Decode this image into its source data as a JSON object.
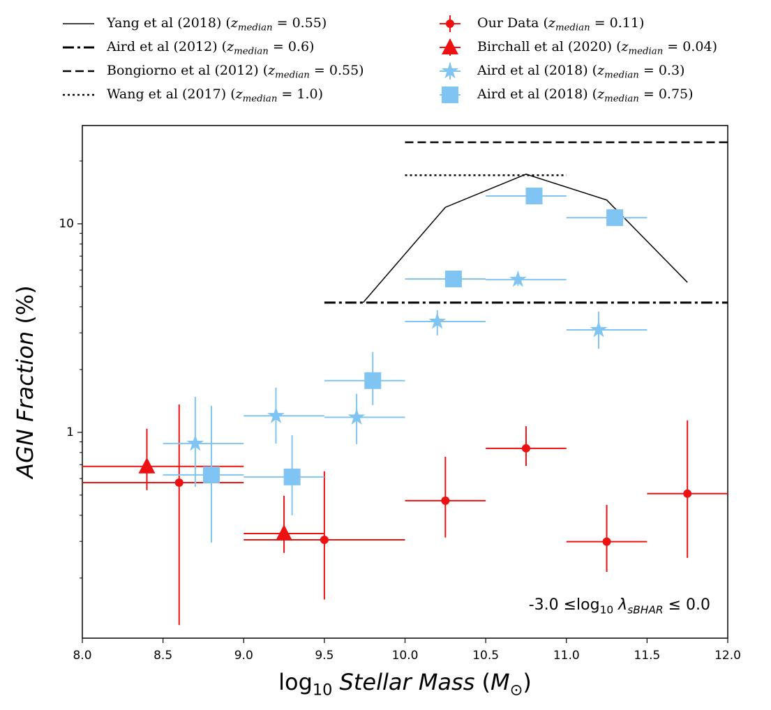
{
  "chart_data": {
    "type": "errorbar",
    "xlabel": "log_{10} *Stellar Mass* (*M*_{⊙})",
    "ylabel": "*AGN Fraction* (%)",
    "annotation": "-3.0 ≤log_{10} *λ*_{*sBHAR*} ≤ 0.0",
    "xlim": [
      8.0,
      12.0
    ],
    "xticks": [
      {
        "value": 8.0,
        "label": "8.0"
      },
      {
        "value": 8.5,
        "label": "8.5"
      },
      {
        "value": 9.0,
        "label": "9.0"
      },
      {
        "value": 9.5,
        "label": "9.5"
      },
      {
        "value": 10.0,
        "label": "10.0"
      },
      {
        "value": 10.5,
        "label": "10.5"
      },
      {
        "value": 11.0,
        "label": "11.0"
      },
      {
        "value": 11.5,
        "label": "11.5"
      },
      {
        "value": 12.0,
        "label": "12.0"
      }
    ],
    "ylim": [
      0.103,
      29.6
    ],
    "yscale": "log",
    "yticks": [
      1,
      10
    ],
    "yminor_ticks": [
      0.2,
      0.3,
      0.4,
      0.5,
      0.6,
      0.7,
      0.8,
      0.9,
      2,
      3,
      4,
      5,
      6,
      7,
      8,
      9,
      20
    ],
    "lines": [
      {
        "name": "Yang et al (2018) (*z*_{*median*} = 0.55)",
        "color": "#000000",
        "style": "solid",
        "x": [
          9.74,
          10.25,
          10.75,
          11.25,
          11.75
        ],
        "values": [
          4.19,
          12.0,
          17.3,
          13.0,
          5.24
        ]
      },
      {
        "name": "Aird et al (2012) (*z*_{*median*} = 0.6)",
        "color": "#000000",
        "style": "dashdot",
        "x": [
          9.5,
          12.0
        ],
        "values": [
          4.19,
          4.19
        ]
      },
      {
        "name": "Bongiorno et al (2012) (*z*_{*median*} = 0.55)",
        "color": "#000000",
        "style": "dashed",
        "x": [
          10.0,
          12.0
        ],
        "values": [
          24.6,
          24.6
        ]
      },
      {
        "name": "Wang et al (2017) (*z*_{*median*} = 1.0)",
        "color": "#000000",
        "style": "dotted",
        "x": [
          10.0,
          11.0
        ],
        "values": [
          17.1,
          17.1
        ]
      }
    ],
    "series": [
      {
        "name": "Our Data (*z*_{*median*} = 0.11)",
        "color": "#ee1111",
        "marker": "circle",
        "x": [
          8.6,
          9.5,
          10.25,
          10.75,
          11.25,
          11.75
        ],
        "values": [
          0.574,
          0.305,
          0.47,
          0.838,
          0.299,
          0.508
        ],
        "x_lo": [
          8.0,
          9.0,
          10.0,
          10.5,
          11.0,
          11.5
        ],
        "x_hi": [
          9.0,
          10.0,
          10.5,
          11.0,
          11.5,
          12.0
        ],
        "y_lo": [
          0.119,
          0.158,
          0.313,
          0.69,
          0.214,
          0.25
        ],
        "y_hi": [
          1.36,
          0.65,
          0.764,
          1.07,
          0.449,
          1.14
        ]
      },
      {
        "name": "Birchall et al (2020) (*z*_{*median*} = 0.04)",
        "color": "#ee1111",
        "marker": "triangle",
        "x": [
          8.4,
          9.25
        ],
        "values": [
          0.686,
          0.327
        ],
        "x_lo": [
          8.0,
          9.0
        ],
        "x_hi": [
          9.0,
          9.5
        ],
        "y_lo": [
          0.528,
          0.264
        ],
        "y_hi": [
          1.04,
          0.496
        ]
      },
      {
        "name": "Aird et al (2018) (*z*_{*median*} = 0.3)",
        "color": "#80c4f4",
        "marker": "star",
        "x": [
          8.7,
          9.2,
          9.7,
          10.2,
          10.7,
          11.2
        ],
        "values": [
          0.884,
          1.2,
          1.18,
          3.4,
          5.4,
          3.1
        ],
        "x_lo": [
          8.5,
          9.0,
          9.5,
          10.0,
          10.5,
          11.0
        ],
        "x_hi": [
          9.0,
          9.5,
          10.0,
          10.5,
          11.0,
          11.5
        ],
        "y_lo": [
          0.548,
          0.884,
          0.877,
          2.92,
          5.04,
          2.52
        ],
        "y_hi": [
          1.48,
          1.64,
          1.53,
          3.85,
          5.88,
          3.79
        ]
      },
      {
        "name": "Aird et al (2018) (*z*_{*median*} = 0.75)",
        "color": "#80c4f4",
        "marker": "square",
        "x": [
          8.8,
          9.3,
          9.8,
          10.3,
          10.8,
          11.3
        ],
        "values": [
          0.625,
          0.611,
          1.77,
          5.44,
          13.6,
          10.7
        ],
        "x_lo": [
          8.5,
          9.0,
          9.5,
          10.0,
          10.5,
          11.0
        ],
        "x_hi": [
          9.0,
          9.5,
          10.0,
          10.5,
          11.0,
          11.5
        ],
        "y_lo": [
          0.296,
          0.4,
          1.35,
          5.04,
          12.4,
          9.93
        ],
        "y_hi": [
          1.34,
          0.97,
          2.43,
          5.88,
          14.9,
          11.5
        ]
      }
    ]
  }
}
